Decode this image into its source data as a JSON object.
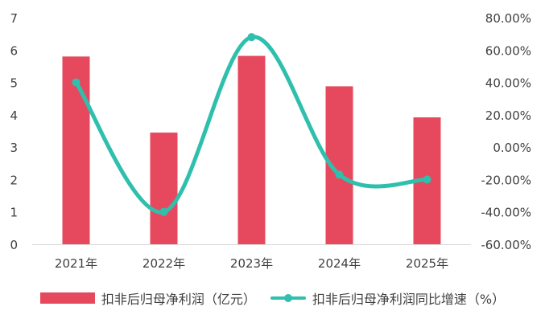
{
  "chart_data": {
    "type": "bar+line",
    "categories": [
      "2021年",
      "2022年",
      "2023年",
      "2024年",
      "2025年"
    ],
    "series": [
      {
        "name": "扣非后归母净利润（亿元）",
        "type": "bar",
        "axis": "left",
        "values": [
          5.8,
          3.45,
          5.82,
          4.88,
          3.92
        ]
      },
      {
        "name": "扣非后归母净利润同比增速（%）",
        "type": "line",
        "axis": "right",
        "values": [
          40,
          -40,
          68,
          -17,
          -20
        ]
      }
    ],
    "y_left": {
      "min": 0,
      "max": 7,
      "ticks": [
        "0",
        "1",
        "2",
        "3",
        "4",
        "5",
        "6",
        "7"
      ]
    },
    "y_right": {
      "min": -60,
      "max": 80,
      "ticks": [
        "-60.00%",
        "-40.00%",
        "-20.00%",
        "0.00%",
        "20.00%",
        "40.00%",
        "60.00%",
        "80.00%"
      ]
    },
    "grid": false,
    "legend": "bottom",
    "colors": {
      "bar": "#e6495e",
      "line": "#2fbfad",
      "axis_text": "#404040",
      "axis_line": "#d9d9d9"
    }
  }
}
